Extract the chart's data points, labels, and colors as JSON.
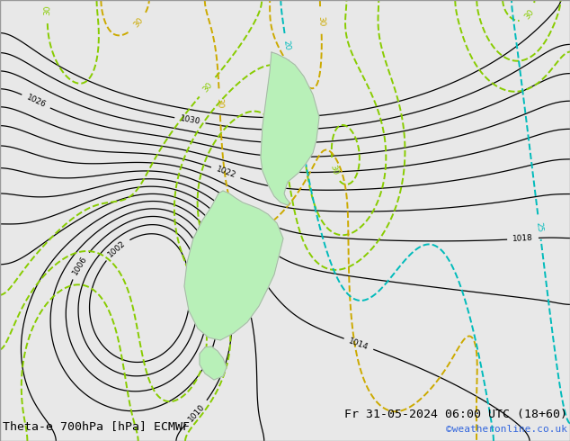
{
  "title_left": "Theta-e 700hPa [hPa] ECMWF",
  "title_right": "Fr 31-05-2024 06:00 UTC (18+60)",
  "credit": "©weatheronline.co.uk",
  "background_color": "#e8e8e8",
  "land_color": "#b8f0b8",
  "land_border_color": "#aaaaaa",
  "contour_color_black": "#000000",
  "contour_color_green": "#88cc00",
  "contour_color_yellow": "#ccaa00",
  "contour_color_cyan": "#00bbbb",
  "title_fontsize": 9.5,
  "credit_fontsize": 8,
  "credit_color": "#3366dd"
}
